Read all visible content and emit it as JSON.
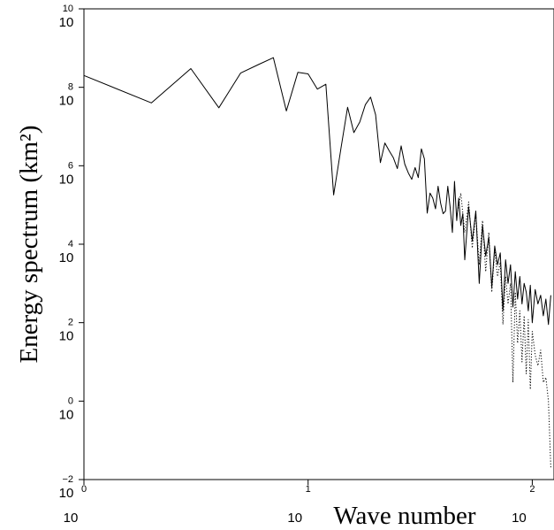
{
  "chart_data": {
    "type": "line",
    "title": "",
    "xlabel": "Wave number",
    "ylabel": "Energy spectrum (km²)",
    "xscale": "log",
    "yscale": "log",
    "xlim": [
      1,
      125
    ],
    "ylim": [
      0.01,
      10000000000
    ],
    "grid": false,
    "x_ticks": [
      {
        "base": "10",
        "exp": "0"
      },
      {
        "base": "10",
        "exp": "1"
      },
      {
        "base": "10",
        "exp": "2"
      }
    ],
    "y_ticks": [
      {
        "base": "10",
        "exp": "−2"
      },
      {
        "base": "10",
        "exp": "0"
      },
      {
        "base": "10",
        "exp": "2"
      },
      {
        "base": "10",
        "exp": "4"
      },
      {
        "base": "10",
        "exp": "6"
      },
      {
        "base": "10",
        "exp": "8"
      },
      {
        "base": "10",
        "exp": "10"
      }
    ],
    "x_tick_values": [
      1,
      10,
      100
    ],
    "y_tick_values": [
      0.01,
      1,
      100,
      10000,
      1000000,
      100000000,
      10000000000
    ],
    "series": [
      {
        "style": "solid",
        "x": [
          1,
          2,
          3,
          4,
          5,
          6,
          7,
          8,
          9,
          10,
          11,
          12,
          13,
          14,
          15,
          16,
          17,
          18,
          19,
          20,
          21,
          22,
          23,
          24,
          25,
          26,
          27,
          28,
          29,
          30,
          31,
          32,
          33,
          34,
          35,
          36,
          37,
          38,
          39,
          40,
          41,
          42,
          43,
          44,
          45,
          46,
          47,
          48,
          49,
          50,
          52,
          54,
          56,
          58,
          60,
          62,
          64,
          66,
          68,
          70,
          72,
          74,
          76,
          78,
          80,
          82,
          84,
          86,
          88,
          90,
          92,
          94,
          96,
          98,
          100,
          103,
          106,
          109,
          112,
          115,
          118,
          121
        ],
        "y": [
          200000000,
          40000000,
          300000000,
          30000000,
          230000000,
          380000000,
          570000000,
          25000000,
          240000000,
          220000000,
          90000000,
          120000000,
          180000,
          2700000,
          31000000,
          7000000,
          13000000,
          36000000,
          56000000,
          20000000,
          1200000,
          3800000,
          2400000,
          1600000,
          850000,
          3200000,
          1100000,
          650000,
          450000,
          900000,
          500000,
          2700000,
          1500000,
          62000,
          200000,
          150000,
          80000,
          300000,
          110000,
          60000,
          70000,
          300000,
          90000,
          20000,
          400000,
          40000,
          150000,
          30000,
          60000,
          4000,
          90000,
          12000,
          70000,
          1000,
          30000,
          5000,
          15000,
          800,
          9000,
          3000,
          6000,
          200,
          4000,
          1000,
          3000,
          250,
          2000,
          400,
          1500,
          300,
          1000,
          600,
          200,
          900,
          100,
          700,
          300,
          500,
          150,
          400,
          90,
          500
        ]
      },
      {
        "style": "dotted",
        "x": [
          46,
          48,
          50,
          52,
          54,
          56,
          58,
          60,
          62,
          64,
          66,
          68,
          70,
          72,
          74,
          76,
          78,
          80,
          82,
          84,
          86,
          88,
          90,
          92,
          94,
          96,
          98,
          100,
          103,
          106,
          109,
          112,
          115,
          118,
          121
        ],
        "y": [
          50000,
          200000,
          20000,
          120000,
          8000,
          60000,
          3000,
          40000,
          2000,
          20000,
          600,
          7000,
          1500,
          3500,
          90,
          1500,
          300,
          1000,
          3,
          600,
          30,
          200,
          10,
          150,
          5,
          120,
          2,
          60,
          15,
          8,
          20,
          3,
          4,
          1,
          0.02
        ]
      }
    ]
  }
}
